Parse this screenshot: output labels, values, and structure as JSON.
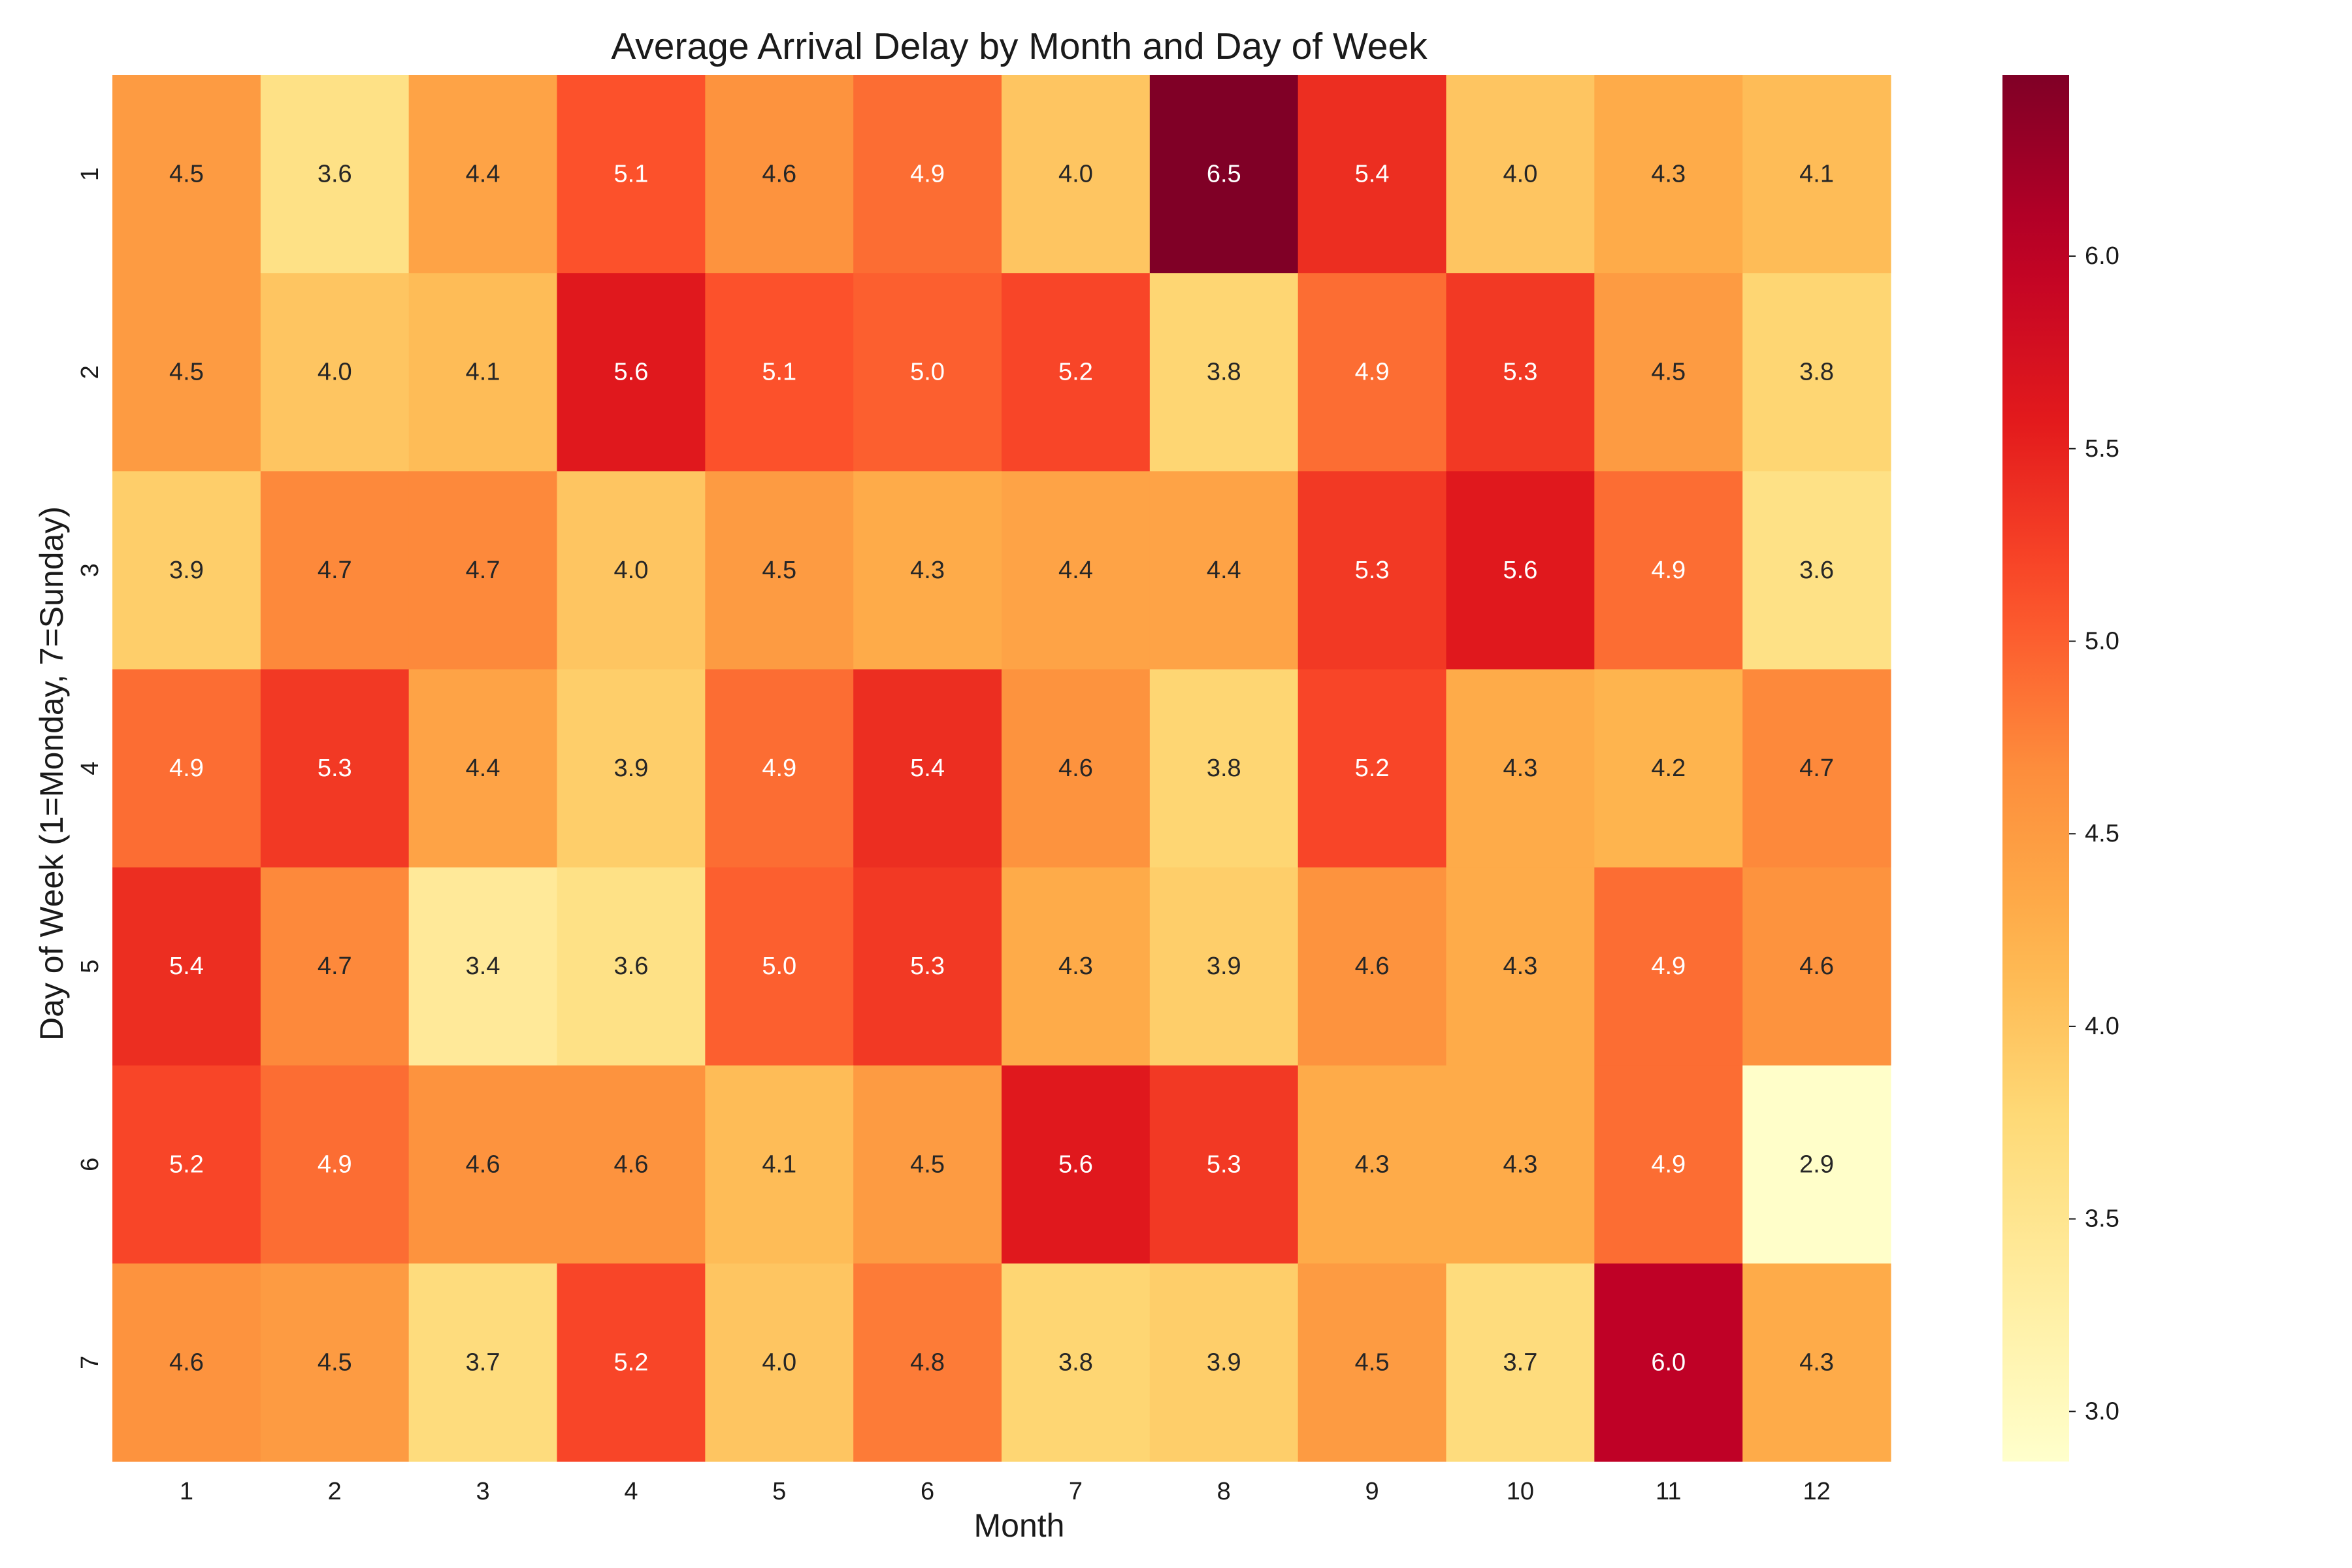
{
  "chart_data": {
    "type": "heatmap",
    "title": "Average Arrival Delay by Month and Day of Week",
    "xlabel": "Month",
    "ylabel": "Day of Week (1=Monday, 7=Sunday)",
    "x_categories": [
      "1",
      "2",
      "3",
      "4",
      "5",
      "6",
      "7",
      "8",
      "9",
      "10",
      "11",
      "12"
    ],
    "y_categories": [
      "1",
      "2",
      "3",
      "4",
      "5",
      "6",
      "7"
    ],
    "values": [
      [
        4.5,
        3.6,
        4.4,
        5.1,
        4.6,
        4.9,
        4.0,
        6.5,
        5.4,
        4.0,
        4.3,
        4.1
      ],
      [
        4.5,
        4.0,
        4.1,
        5.6,
        5.1,
        5.0,
        5.2,
        3.8,
        4.9,
        5.3,
        4.5,
        3.8
      ],
      [
        3.9,
        4.7,
        4.7,
        4.0,
        4.5,
        4.3,
        4.4,
        4.4,
        5.3,
        5.6,
        4.9,
        3.6
      ],
      [
        4.9,
        5.3,
        4.4,
        3.9,
        4.9,
        5.4,
        4.6,
        3.8,
        5.2,
        4.3,
        4.2,
        4.7
      ],
      [
        5.4,
        4.7,
        3.4,
        3.6,
        5.0,
        5.3,
        4.3,
        3.9,
        4.6,
        4.3,
        4.9,
        4.6
      ],
      [
        5.2,
        4.9,
        4.6,
        4.6,
        4.1,
        4.5,
        5.6,
        5.3,
        4.3,
        4.3,
        4.9,
        2.9
      ],
      [
        4.6,
        4.5,
        3.7,
        5.2,
        4.0,
        4.8,
        3.8,
        3.9,
        4.5,
        3.7,
        6.0,
        4.3
      ]
    ],
    "colormap": "YlOrRd",
    "colorbar": {
      "vmin": 2.87,
      "vmax": 6.47,
      "ticks": [
        "3.0",
        "3.5",
        "4.0",
        "4.5",
        "5.0",
        "5.5",
        "6.0"
      ]
    },
    "legend_placement": "right",
    "grid": false
  }
}
